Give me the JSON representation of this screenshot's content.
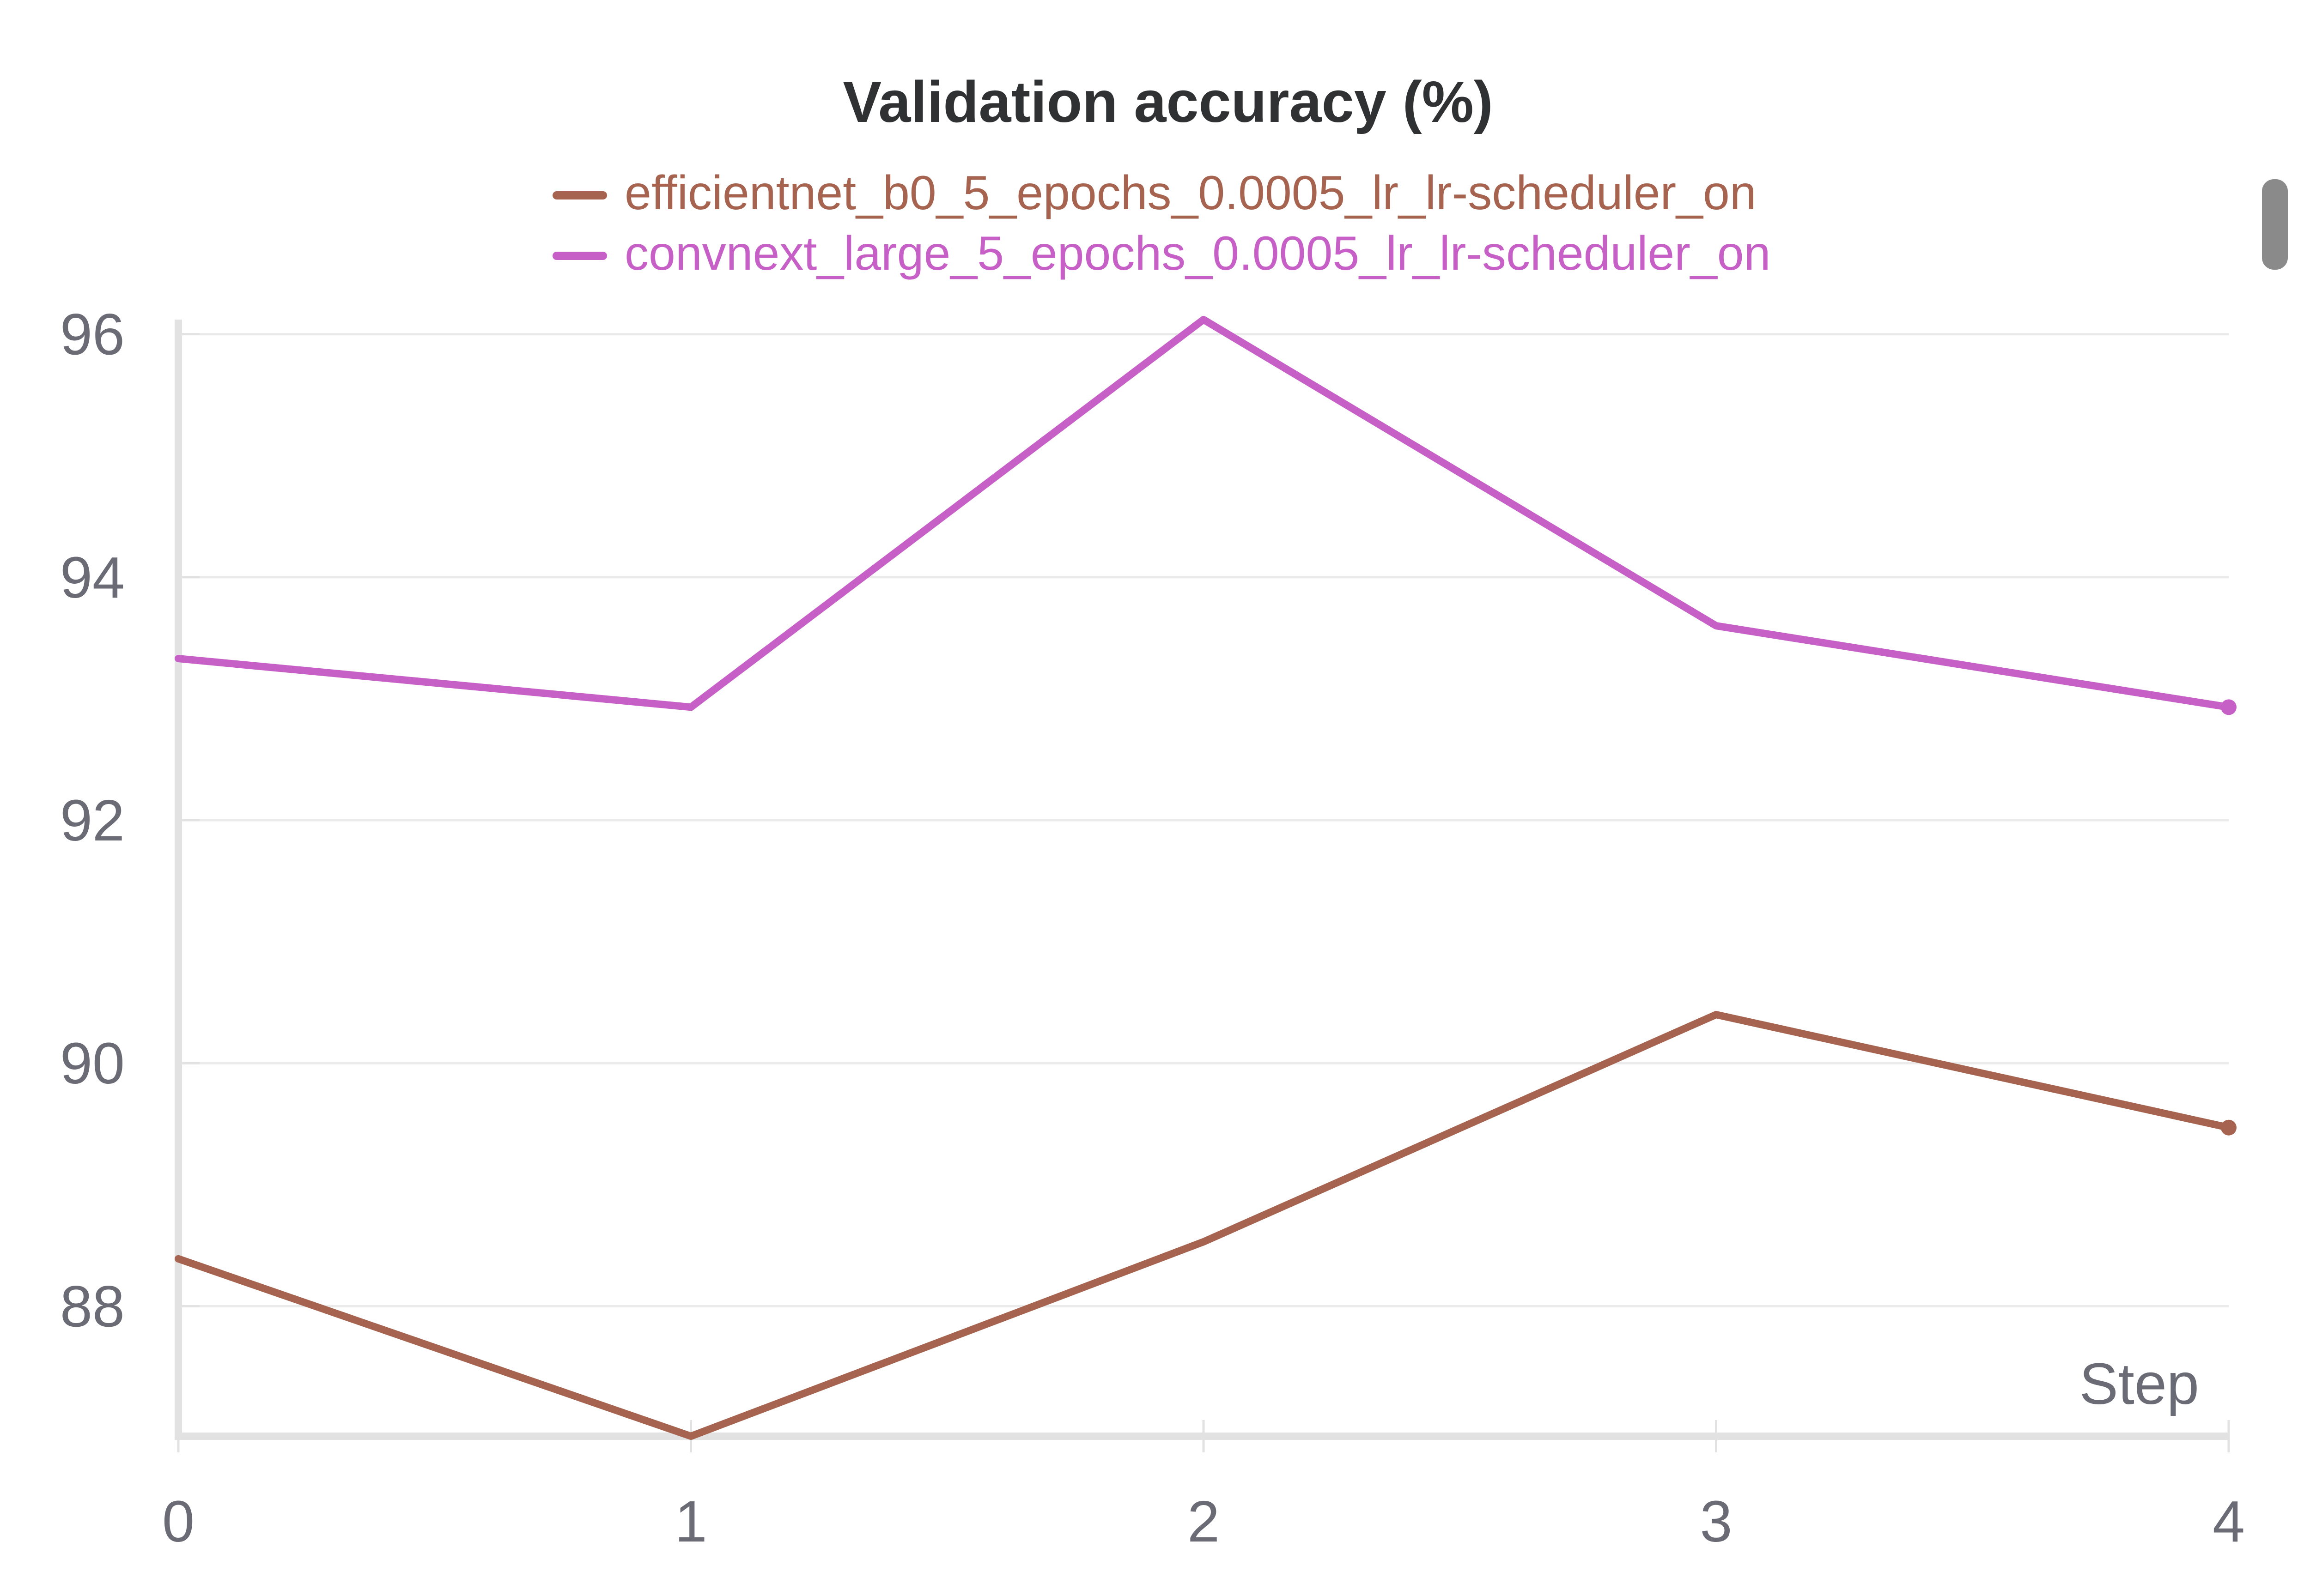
{
  "chart_data": {
    "type": "line",
    "title": "Validation accuracy (%)",
    "xlabel": "Step",
    "ylabel": "",
    "x": [
      0,
      1,
      2,
      3,
      4
    ],
    "xticks": [
      "0",
      "1",
      "2",
      "3",
      "4"
    ],
    "yticks": [
      "88",
      "90",
      "92",
      "94",
      "96"
    ],
    "xlim": [
      0,
      4
    ],
    "ylim": [
      86.93,
      96.12
    ],
    "grid": true,
    "legend": "top-center",
    "series": [
      {
        "name": "efficientnet_b0_5_epochs_0.0005_lr_lr-scheduler_on",
        "color": "#a66450",
        "values": [
          88.39,
          86.93,
          88.53,
          90.4,
          89.47
        ]
      },
      {
        "name": "convnext_large_5_epochs_0.0005_lr_lr-scheduler_on",
        "color": "#c65fc6",
        "values": [
          93.33,
          92.93,
          96.12,
          93.6,
          92.93
        ]
      }
    ]
  },
  "scrollbar": {
    "color": "#8a8a8a"
  }
}
